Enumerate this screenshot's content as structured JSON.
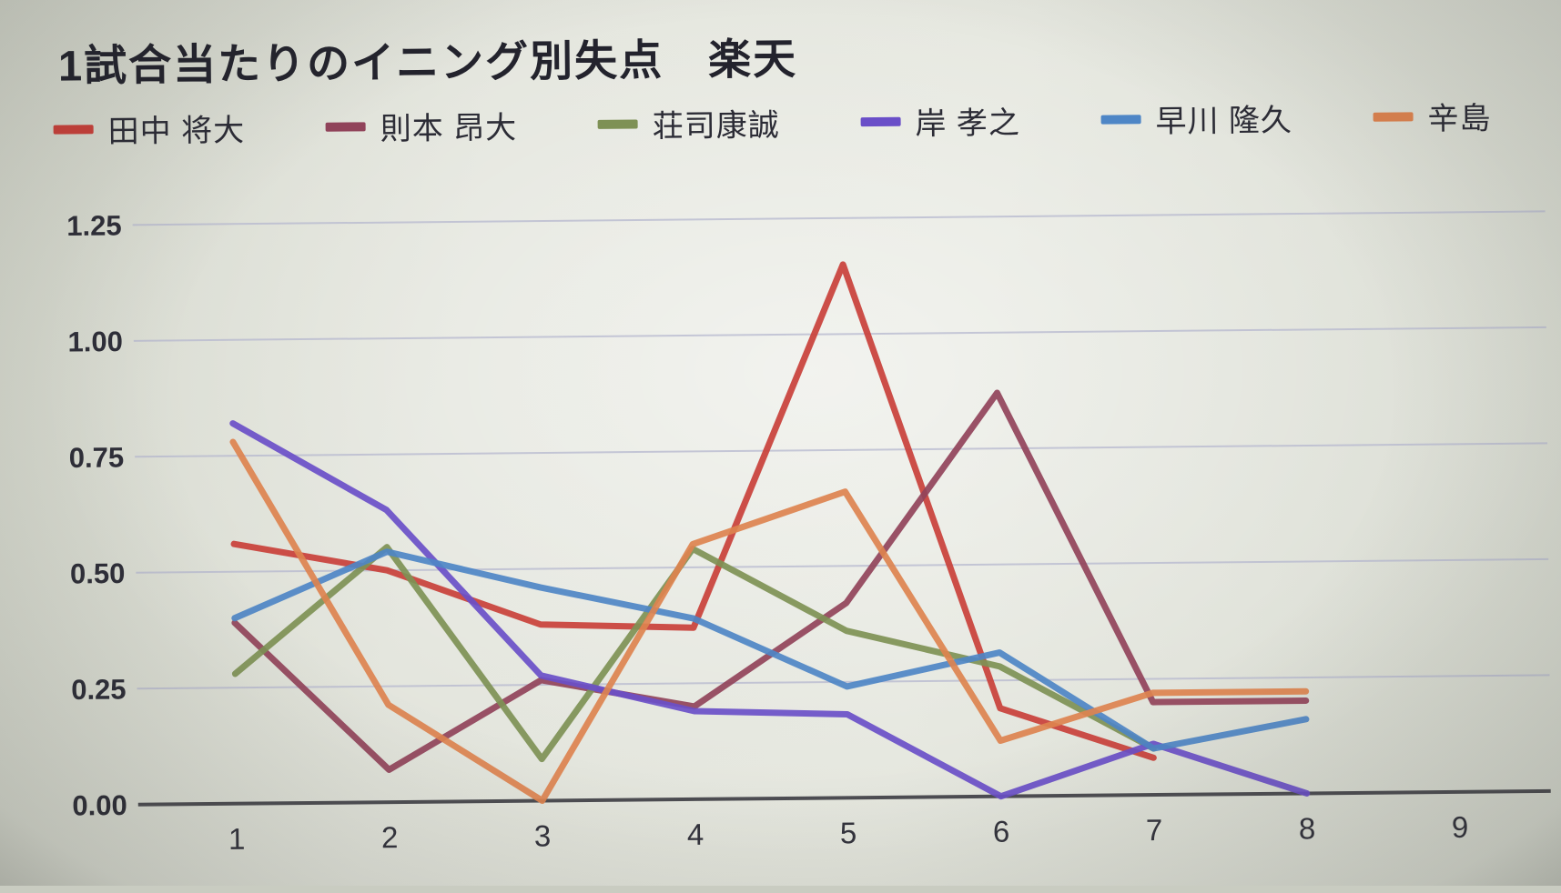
{
  "title": "1試合当たりのイニング別失点　楽天",
  "chart_data": {
    "type": "line",
    "x": [
      1,
      2,
      3,
      4,
      5,
      6,
      7,
      8,
      9
    ],
    "x_tick_labels": [
      "1",
      "2",
      "3",
      "4",
      "5",
      "6",
      "7",
      "8",
      "9"
    ],
    "y_ticks": [
      1.25,
      1.0,
      0.75,
      0.5,
      0.25,
      0.0
    ],
    "y_tick_labels": [
      "1.25",
      "1.00",
      "0.75",
      "0.50",
      "0.25",
      "0.00"
    ],
    "ylim": [
      0,
      1.25
    ],
    "grid": true,
    "legend_position": "top",
    "xlabel": "",
    "ylabel": "",
    "series": [
      {
        "key": "tanaka",
        "name": "田中 将大",
        "color": "#C9403A",
        "values": [
          0.56,
          0.5,
          0.38,
          0.37,
          1.15,
          0.19,
          0.08,
          null,
          null
        ]
      },
      {
        "key": "norimoto",
        "name": "則本 昂大",
        "color": "#91435A",
        "values": [
          0.39,
          0.07,
          0.26,
          0.2,
          0.42,
          0.87,
          0.2,
          0.2,
          null
        ]
      },
      {
        "key": "shoji",
        "name": "荘司康誠",
        "color": "#7E9155",
        "values": [
          0.28,
          0.55,
          0.09,
          0.54,
          0.36,
          0.28,
          0.1,
          null,
          null
        ]
      },
      {
        "key": "kishi",
        "name": "岸 孝之",
        "color": "#6A4FC8",
        "values": [
          0.82,
          0.63,
          0.27,
          0.19,
          0.18,
          0.0,
          0.11,
          0.0,
          null
        ]
      },
      {
        "key": "hayakawa",
        "name": "早川 隆久",
        "color": "#4E86C6",
        "values": [
          0.4,
          0.54,
          0.46,
          0.39,
          0.24,
          0.31,
          0.1,
          0.16,
          null
        ]
      },
      {
        "key": "karashima",
        "name": "辛島",
        "color": "#DD834F",
        "values": [
          0.78,
          0.21,
          0.0,
          0.55,
          0.66,
          0.12,
          0.22,
          0.22,
          null
        ]
      }
    ],
    "colors": {
      "gridline": "#b6b8cf",
      "axis": "#4d4d52",
      "title_text": "#23232d"
    }
  }
}
